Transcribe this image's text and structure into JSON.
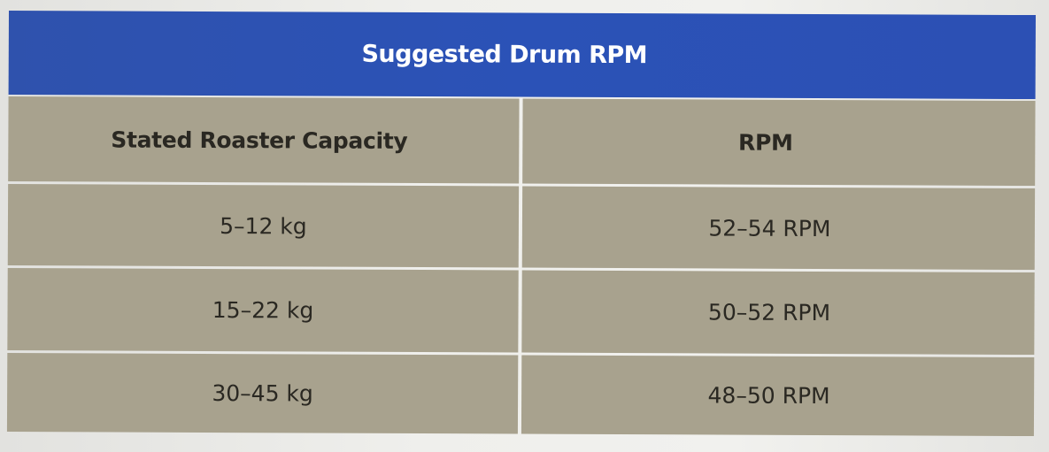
{
  "table": {
    "title": "Suggested Drum RPM",
    "headers": [
      "Stated Roaster Capacity",
      "RPM"
    ],
    "rows": [
      [
        "5–12 kg",
        "52–54 RPM"
      ],
      [
        "15–22 kg",
        "50–52 RPM"
      ],
      [
        "30–45 kg",
        "48–50 RPM"
      ]
    ],
    "colors": {
      "title_bar": "#2c50b4",
      "cell_background": "#a8a28e",
      "text": "#2a2822"
    }
  }
}
